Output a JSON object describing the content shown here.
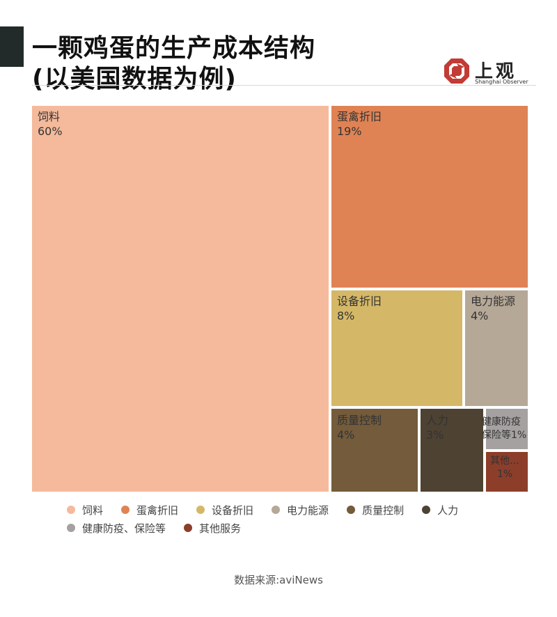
{
  "header": {
    "title_line1": "一颗鸡蛋的生产成本结构",
    "title_line2": "(以美国数据为例)"
  },
  "logo": {
    "name": "上观",
    "subtitle": "Shanghai Observer",
    "color": "#c23b34"
  },
  "chart_data": {
    "type": "treemap",
    "unit": "%",
    "items": [
      {
        "label": "饲料",
        "tile_label": "饲料",
        "value_label": "60%",
        "value": 60,
        "color": "#f5ba9b"
      },
      {
        "label": "蛋禽折旧",
        "tile_label": "蛋禽折旧",
        "value_label": "19%",
        "value": 19,
        "color": "#df8355"
      },
      {
        "label": "设备折旧",
        "tile_label": "设备折旧",
        "value_label": "8%",
        "value": 8,
        "color": "#d5b867"
      },
      {
        "label": "电力能源",
        "tile_label": "电力能源",
        "value_label": "4%",
        "value": 4,
        "color": "#b6a897"
      },
      {
        "label": "质量控制",
        "tile_label": "质量控制",
        "value_label": "4%",
        "value": 4,
        "color": "#735b3b"
      },
      {
        "label": "人力",
        "tile_label": "人力",
        "value_label": "3%",
        "value": 3,
        "color": "#4e4232"
      },
      {
        "label": "健康防疫、保险等",
        "tile_label": "健康防疫\n保险等1%",
        "value_label": "",
        "value": 1,
        "color": "#a6a1a1"
      },
      {
        "label": "其他服务",
        "tile_label": "其他…",
        "value_label": "1%",
        "value": 1,
        "color": "#8c3e2a"
      }
    ],
    "legend_placement": "bottom"
  },
  "footer": {
    "source": "数据来源:aviNews"
  }
}
